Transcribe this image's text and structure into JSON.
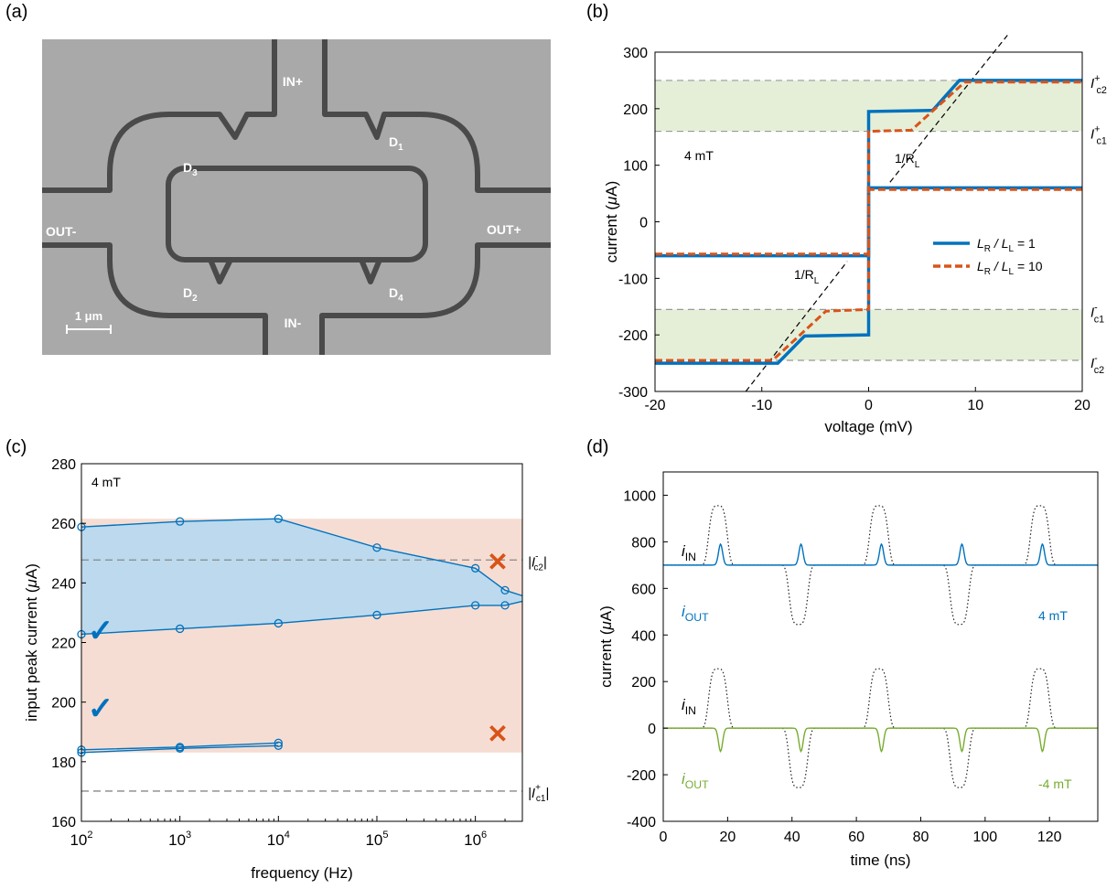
{
  "panels": {
    "a": "(a)",
    "b": "(b)",
    "c": "(c)",
    "d": "(d)"
  },
  "micrograph": {
    "labels": {
      "in_plus": "IN+",
      "in_minus": "IN-",
      "out_minus": "OUT-",
      "out_plus": "OUT+"
    },
    "diodes": [
      {
        "main": "D",
        "sub": "3"
      },
      {
        "main": "D",
        "sub": "1"
      },
      {
        "main": "D",
        "sub": "2"
      },
      {
        "main": "D",
        "sub": "4"
      }
    ],
    "scale_bar": "1 μm",
    "colors": {
      "background": "#a8a8a8",
      "trench": "#4a4a4a",
      "text": "#ffffff"
    }
  },
  "chart_data": [
    {
      "id": "b",
      "type": "line",
      "xlabel": "voltage (mV)",
      "ylabel_main": "current (",
      "ylabel_unit": "μ",
      "ylabel_tail": "A)",
      "xlim": [
        -20,
        20
      ],
      "ylim": [
        -300,
        300
      ],
      "xticks": [
        "-20",
        "-10",
        "0",
        "10",
        "20"
      ],
      "yticks": [
        "300",
        "200",
        "100",
        "0",
        "-100",
        "-200",
        "-300"
      ],
      "bands": [
        {
          "from": 160,
          "to": 250
        },
        {
          "from": -245,
          "to": -155
        }
      ],
      "band_color": "#e5efd8",
      "hlines": [
        250,
        160,
        -155,
        -245
      ],
      "annotation": "4 mT",
      "slope_label": "1/R",
      "slope_sub": "L",
      "right_labels": [
        {
          "y": 250,
          "sign": "+",
          "sub": "c2"
        },
        {
          "y": 160,
          "sign": "+",
          "sub": "c1"
        },
        {
          "y": -155,
          "sign": "-",
          "sub": "c1"
        },
        {
          "y": -245,
          "sign": "-",
          "sub": "c2"
        }
      ],
      "legend_position": "center-right",
      "series": [
        {
          "name": "L_R / L_L = 1",
          "color": "#0072bd",
          "style": "solid",
          "segments": [
            [
              [
                -20,
                -60
              ],
              [
                0,
                -60
              ],
              [
                0,
                195
              ],
              [
                6,
                197
              ],
              [
                8.5,
                250
              ],
              [
                20,
                250
              ]
            ],
            [
              [
                -20,
                -250
              ],
              [
                -8.5,
                -250
              ],
              [
                -6,
                -202
              ],
              [
                0,
                -200
              ],
              [
                0,
                60
              ],
              [
                20,
                60
              ]
            ]
          ]
        },
        {
          "name": "L_R / L_L = 10",
          "color": "#d95319",
          "style": "dashed",
          "segments": [
            [
              [
                -20,
                -57
              ],
              [
                0,
                -57
              ],
              [
                0,
                160
              ],
              [
                4,
                162
              ],
              [
                9,
                247
              ],
              [
                20,
                247
              ]
            ],
            [
              [
                -20,
                -245
              ],
              [
                -9,
                -245
              ],
              [
                -4,
                -158
              ],
              [
                0,
                -155
              ],
              [
                0,
                57
              ],
              [
                20,
                57
              ]
            ]
          ]
        }
      ],
      "legend": [
        {
          "main": "L",
          "sub1": "R",
          "mid": " / L",
          "sub2": "L",
          "tail": " = 1"
        },
        {
          "main": "L",
          "sub1": "R",
          "mid": " / L",
          "sub2": "L",
          "tail": " = 10"
        }
      ]
    },
    {
      "id": "c",
      "type": "line",
      "xlabel": "frequency (Hz)",
      "ylabel_main": "input peak current (",
      "ylabel_unit": "μ",
      "ylabel_tail": "A)",
      "xscale": "log",
      "xlim": [
        100,
        3000000
      ],
      "ylim": [
        150,
        280
      ],
      "xticks": [
        {
          "base": "10",
          "exp": "2",
          "v": 100
        },
        {
          "base": "10",
          "exp": "3",
          "v": 1000
        },
        {
          "base": "10",
          "exp": "4",
          "v": 10000
        },
        {
          "base": "10",
          "exp": "5",
          "v": 100000
        },
        {
          "base": "10",
          "exp": "6",
          "v": 1000000
        }
      ],
      "yticks": [
        "280",
        "260",
        "240",
        "220",
        "200",
        "180",
        "160"
      ],
      "annotation": "4 mT",
      "region": {
        "from": 175,
        "to": 260,
        "color": "#f6ddd3"
      },
      "hlines": [
        {
          "y": 245,
          "label": "|I",
          "sign": "-",
          "sub": "c2",
          "tail": "|"
        },
        {
          "y": 161,
          "label": "|I",
          "sign": "+",
          "sub": "c1",
          "tail": "|"
        }
      ],
      "upper_series": {
        "x": [
          100,
          1000,
          10000,
          100000,
          1000000,
          2000000,
          3000000
        ],
        "values": [
          257,
          259,
          260,
          249.5,
          242,
          234,
          232
        ]
      },
      "lower_series": {
        "x": [
          100,
          1000,
          10000,
          100000,
          1000000,
          2000000,
          3000000
        ],
        "values": [
          218,
          220,
          222,
          225,
          228.5,
          228.5,
          230
        ]
      },
      "small_upper": {
        "x": [
          100,
          1000,
          10000
        ],
        "values": [
          176,
          177,
          178.5
        ]
      },
      "small_lower": {
        "x": [
          100,
          1000,
          10000
        ],
        "values": [
          175,
          176.5,
          177.5
        ]
      },
      "fill_color": "#bcd9ee",
      "line_color": "#0072bd",
      "check_symbol": "✓",
      "cross_symbol": "✕",
      "check_color": "#0072bd",
      "cross_color": "#d95319"
    },
    {
      "id": "d",
      "type": "line",
      "xlabel": "time (ns)",
      "ylabel_main": "current (",
      "ylabel_unit": "μ",
      "ylabel_tail": "A)",
      "xlim": [
        0,
        135
      ],
      "ylim": [
        -400,
        1100
      ],
      "xticks": [
        "0",
        "20",
        "40",
        "60",
        "80",
        "100",
        "120"
      ],
      "yticks": [
        "1000",
        "800",
        "600",
        "400",
        "200",
        "0",
        "-200",
        "-400"
      ],
      "pulse_times": [
        17,
        42,
        67,
        92,
        117
      ],
      "pulse_signs": [
        1,
        -1,
        1,
        -1,
        1
      ],
      "upper": {
        "baseline": 700,
        "in_amp": 255,
        "out_amp": 90,
        "out_color": "#0072bd",
        "field": "4 mT"
      },
      "lower": {
        "baseline": 0,
        "in_amp": 255,
        "out_amp": 100,
        "out_color": "#77ac30",
        "field": "-4 mT"
      },
      "in_label": {
        "main": "i",
        "sub": "IN"
      },
      "out_label": {
        "main": "i",
        "sub": "OUT"
      },
      "in_color": "#222222"
    }
  ]
}
